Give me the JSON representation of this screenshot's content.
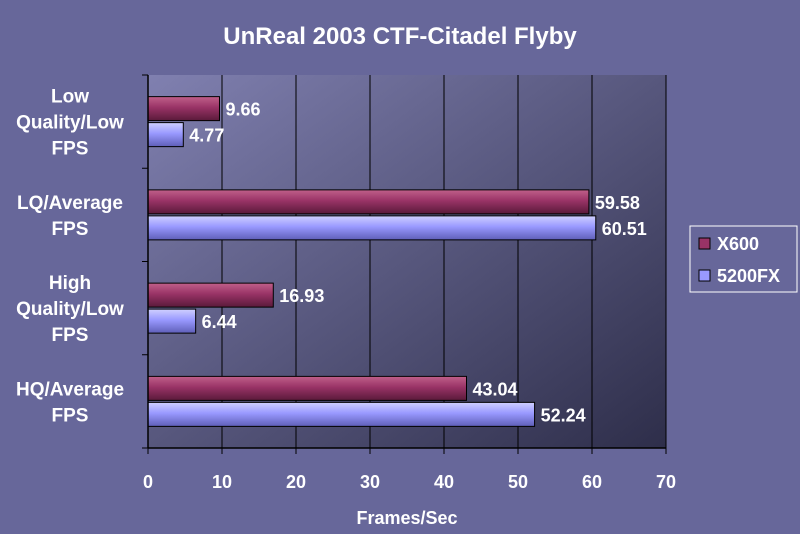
{
  "chart_data": {
    "type": "bar",
    "orientation": "horizontal",
    "title": "UnReal 2003 CTF-Citadel Flyby",
    "xlabel": "Frames/Sec",
    "ylabel": "",
    "xlim": [
      0,
      70
    ],
    "xticks": [
      "0",
      "10",
      "20",
      "30",
      "40",
      "50",
      "60",
      "70"
    ],
    "xtick_values": [
      0,
      10,
      20,
      30,
      40,
      50,
      60,
      70
    ],
    "categories": [
      [
        "Low",
        "Quality/Low",
        "FPS"
      ],
      [
        "LQ/Average",
        "FPS"
      ],
      [
        "High",
        "Quality/Low",
        "FPS"
      ],
      [
        "HQ/Average",
        "FPS"
      ]
    ],
    "series": [
      {
        "name": "X600",
        "color": "#993366",
        "values": [
          9.66,
          59.58,
          16.93,
          43.04
        ],
        "labels": [
          "9.66",
          "59.58",
          "16.93",
          "43.04"
        ]
      },
      {
        "name": "5200FX",
        "color": "#9999ff",
        "values": [
          4.77,
          60.51,
          6.44,
          52.24
        ],
        "labels": [
          "4.77",
          "60.51",
          "6.44",
          "52.24"
        ]
      }
    ],
    "grid": true,
    "legend_position": "right"
  }
}
